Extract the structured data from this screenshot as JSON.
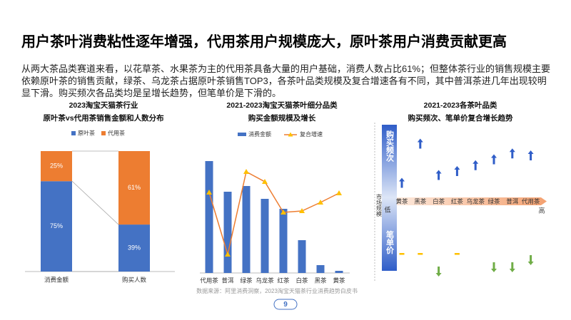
{
  "header": {
    "title": "用户茶叶消费粘性逐年增强，代用茶用户规模庞大，原叶茶用户消费贡献更高",
    "text": "从两大茶品类赛道来看，以花草茶、水果茶为主的代用茶具备大量的用户基础，消费人数占比61%；但整体茶行业的销售规模主要依赖原叶茶的销售贡献，绿茶、乌龙茶占据原叶茶销售TOP3，各茶叶品类规模及复合增速各有不同，其中普洱茶进几年出现较明显下滑。购买频次各品类均是呈增长趋势，但笔单价是下滑的。"
  },
  "chart_data": [
    {
      "type": "stacked-bar",
      "title": "2023淘宝天猫茶行业",
      "subtitle": "原叶茶vs代用茶销售金额和人数分布",
      "categories": [
        "消费金额",
        "购买人数"
      ],
      "ylim": [
        0,
        100
      ],
      "series": [
        {
          "name": "原叶茶",
          "color": "#4472c4",
          "values": [
            75,
            39
          ],
          "value_labels": [
            "75%",
            "39%"
          ]
        },
        {
          "name": "代用茶",
          "color": "#ed7d31",
          "values": [
            25,
            61
          ],
          "value_labels": [
            "25%",
            "61%"
          ]
        }
      ]
    },
    {
      "type": "bar-line",
      "title": "2021-2023淘宝天猫茶叶细分品类",
      "subtitle": "购买金额规模及增长",
      "categories": [
        "代用茶",
        "普洱",
        "绿茶",
        "乌龙茶",
        "红茶",
        "白茶",
        "黑茶",
        "黄茶"
      ],
      "ylim": [
        0,
        160
      ],
      "y2lim": [
        0,
        160
      ],
      "series": [
        {
          "name": "消费金额",
          "color": "#4472c4",
          "values": [
            157,
            114,
            122,
            104,
            90,
            46,
            11,
            3
          ]
        },
        {
          "name": "复合增速",
          "color": "#ffc000",
          "line_color": "#ed7d31",
          "axis": "y2",
          "values": [
            113,
            26,
            142,
            128,
            85,
            87,
            99,
            112
          ]
        }
      ]
    },
    {
      "type": "trend-arrows",
      "title": "2021-2023各茶叶品类",
      "subtitle": "购买频次、笔单价复合增长趋势",
      "categories": [
        "黄茶",
        "黑茶",
        "白茶",
        "红茶",
        "乌龙茶",
        "绿茶",
        "普洱",
        "代用茶"
      ],
      "x_label": "市场规模",
      "x_low": "低",
      "x_high": "高",
      "series": [
        {
          "name": "购买频次",
          "color": "#2f5dc8",
          "values": [
            1,
            3,
            1.4,
            1.6,
            1.9,
            2.2,
            2.5,
            2.4
          ]
        },
        {
          "name": "笔单价",
          "color": "#70ad47",
          "flat_color": "#ffc000",
          "values": [
            0,
            0,
            -1.3,
            0,
            null,
            -1,
            -1,
            -0.5
          ]
        }
      ]
    }
  ],
  "footer": {
    "source": "数据来源：阿里消费洞察，2023淘宝天猫茶行业消费趋势白皮书",
    "page": "9"
  }
}
